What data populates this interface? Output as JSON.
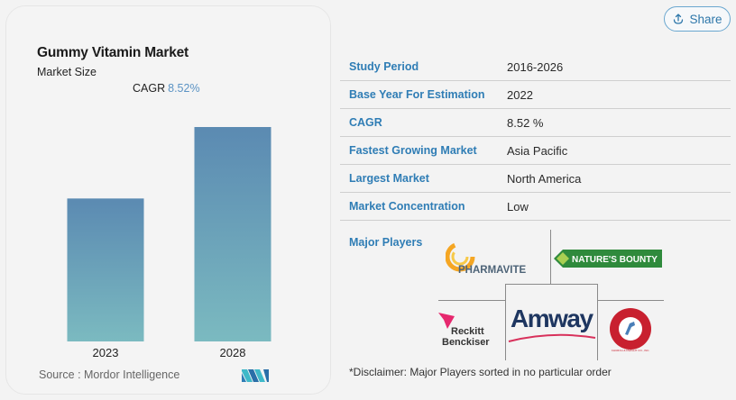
{
  "card": {
    "title": "Gummy Vitamin Market",
    "subtitle": "Market Size",
    "cagr_label": "CAGR",
    "cagr_value": "8.52%",
    "source": "Source :  Mordor Intelligence",
    "logo_icon": "mordor-intelligence-logo"
  },
  "chart_data": {
    "type": "bar",
    "title": "Gummy Vitamin Market",
    "subtitle": "Market Size",
    "categories": [
      "2023",
      "2028"
    ],
    "values": [
      1.0,
      1.5
    ],
    "value_note": "relative bar heights; no axis values shown",
    "annotation": "CAGR 8.52%",
    "xlabel": "",
    "ylabel": "",
    "ylim": [
      0,
      1.5
    ],
    "grid": false,
    "colors": {
      "top": "#5b8ab2",
      "bottom": "#7bbac0"
    }
  },
  "share": {
    "label": "Share",
    "icon": "share-upload-icon"
  },
  "info": [
    {
      "label": "Study Period",
      "value": "2016-2026"
    },
    {
      "label": "Base Year For Estimation",
      "value": "2022"
    },
    {
      "label": "CAGR",
      "value": "8.52 %"
    },
    {
      "label": "Fastest Growing Market",
      "value": "Asia Pacific"
    },
    {
      "label": "Largest Market",
      "value": "North America"
    },
    {
      "label": "Market Concentration",
      "value": "Low"
    }
  ],
  "players": {
    "label": "Major Players",
    "logos": {
      "pharmavite": "PHARMAVITE",
      "natures_bounty": "NATURE'S BOUNTY",
      "reckitt_line1": "Reckitt",
      "reckitt_line2": "Benckiser",
      "amway": "Amway",
      "church_dwight": "CHURCH & DWIGHT CO., INC."
    },
    "disclaimer": "*Disclaimer: Major Players sorted in no particular order"
  },
  "colors": {
    "accent": "#2f7db5",
    "cagr": "#5b93c4",
    "share_border": "#6aa7cf"
  }
}
